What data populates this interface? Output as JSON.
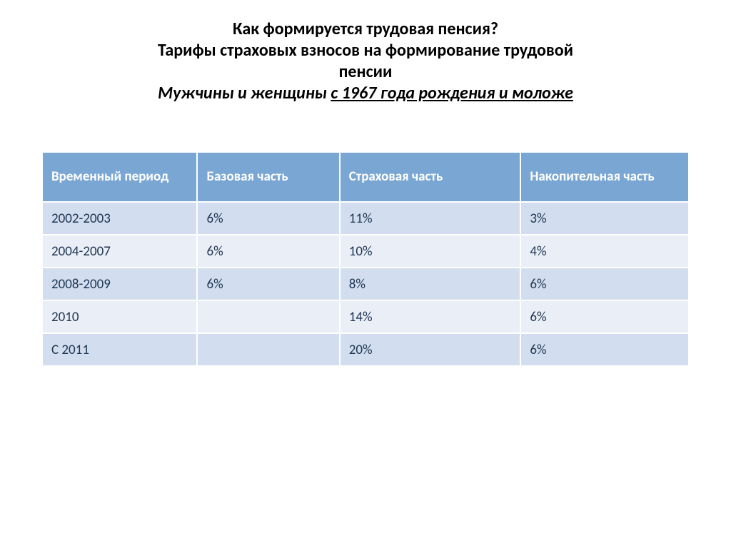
{
  "title": {
    "line1": "Как формируется трудовая пенсия?",
    "line2": "Тарифы страховых взносов на формирование трудовой",
    "line3": "пенсии",
    "subtitle_prefix": "Мужчины и женщины ",
    "subtitle_underlined": "с 1967 года рождения и моложе"
  },
  "table": {
    "type": "table",
    "header_bg": "#79a6d2",
    "header_color": "#ffffff",
    "row_odd_bg": "#d2deef",
    "row_even_bg": "#eaeff7",
    "cell_color": "#1f3552",
    "border_color": "#ffffff",
    "columns": [
      "Временный период",
      "Базовая часть",
      "Страховая часть",
      "Накопительная часть"
    ],
    "rows": [
      [
        "2002-2003",
        "6%",
        "11%",
        "3%"
      ],
      [
        "2004-2007",
        "6%",
        "10%",
        "4%"
      ],
      [
        "2008-2009",
        "6%",
        "8%",
        "6%"
      ],
      [
        "2010",
        "",
        "14%",
        "6%"
      ],
      [
        "С 2011",
        "",
        "20%",
        "6%"
      ]
    ]
  }
}
